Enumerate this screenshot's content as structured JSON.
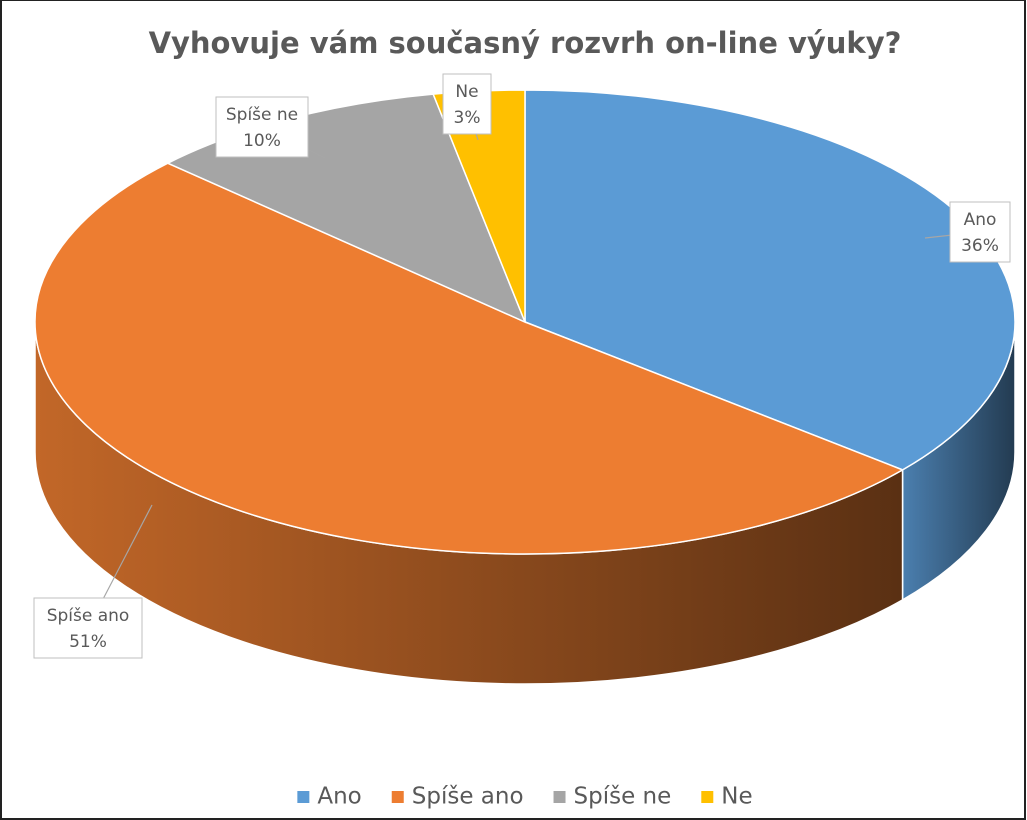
{
  "chart_data": {
    "type": "pie3d",
    "title": "Vyhovuje vám současný rozvrh on-line výuky?",
    "categories": [
      "Ano",
      "Spíše ano",
      "Spíše ne",
      "Ne"
    ],
    "values": [
      36,
      51,
      10,
      3
    ],
    "value_labels": [
      "36%",
      "51%",
      "10%",
      "3%"
    ],
    "colors": [
      "#5b9bd5",
      "#ed7d31",
      "#a5a5a5",
      "#ffc000"
    ],
    "legend": "bottom"
  }
}
